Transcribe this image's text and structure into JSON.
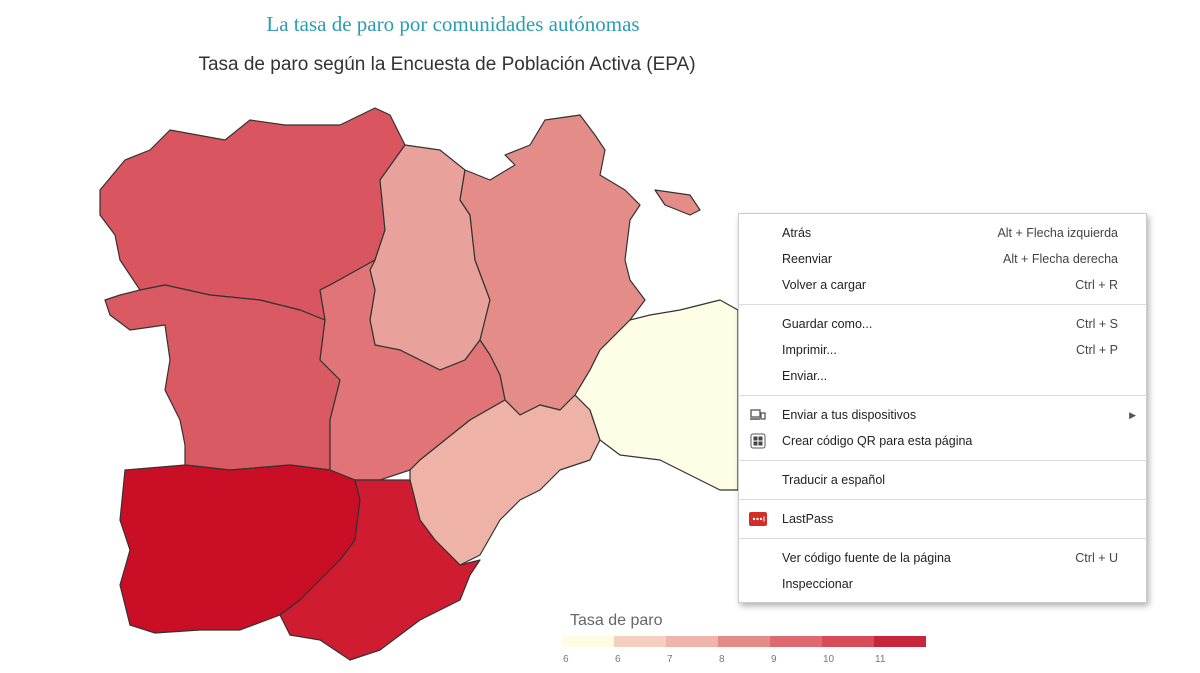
{
  "title": "La tasa de paro por comunidades autónomas",
  "subtitle": "Tasa de paro según la Encuesta de Población Activa (EPA)",
  "legend": {
    "title": "Tasa de paro",
    "colors": [
      "#fefde4",
      "#f5cfbd",
      "#efb4aa",
      "#e48a88",
      "#dc6a70",
      "#d84c59",
      "#c8243c"
    ],
    "labels": [
      "6",
      "6",
      "7",
      "8",
      "9",
      "10",
      "11"
    ]
  },
  "map_colors": [
    "#d95660",
    "#e9a19b",
    "#e48d88",
    "#da5a63",
    "#e07476",
    "#eeb2a7",
    "#fefde5",
    "#c90e26",
    "#cf1c31"
  ],
  "menu": {
    "groups": [
      [
        {
          "label": "Atrás",
          "shortcut": "Alt + Flecha izquierda"
        },
        {
          "label": "Reenviar",
          "shortcut": "Alt + Flecha derecha"
        },
        {
          "label": "Volver a cargar",
          "shortcut": "Ctrl + R"
        }
      ],
      [
        {
          "label": "Guardar como...",
          "shortcut": "Ctrl + S"
        },
        {
          "label": "Imprimir...",
          "shortcut": "Ctrl + P"
        },
        {
          "label": "Enviar..."
        }
      ],
      [
        {
          "label": "Enviar a tus dispositivos",
          "icon": "devices-icon"
        },
        {
          "label": "Crear código QR para esta página",
          "icon": "qr-code-icon"
        }
      ],
      [
        {
          "label": "Traducir a español"
        }
      ],
      [
        {
          "label": "LastPass",
          "icon": "lastpass-icon"
        }
      ],
      [
        {
          "label": "Ver código fuente de la página",
          "shortcut": "Ctrl + U"
        },
        {
          "label": "Inspeccionar"
        }
      ]
    ]
  }
}
